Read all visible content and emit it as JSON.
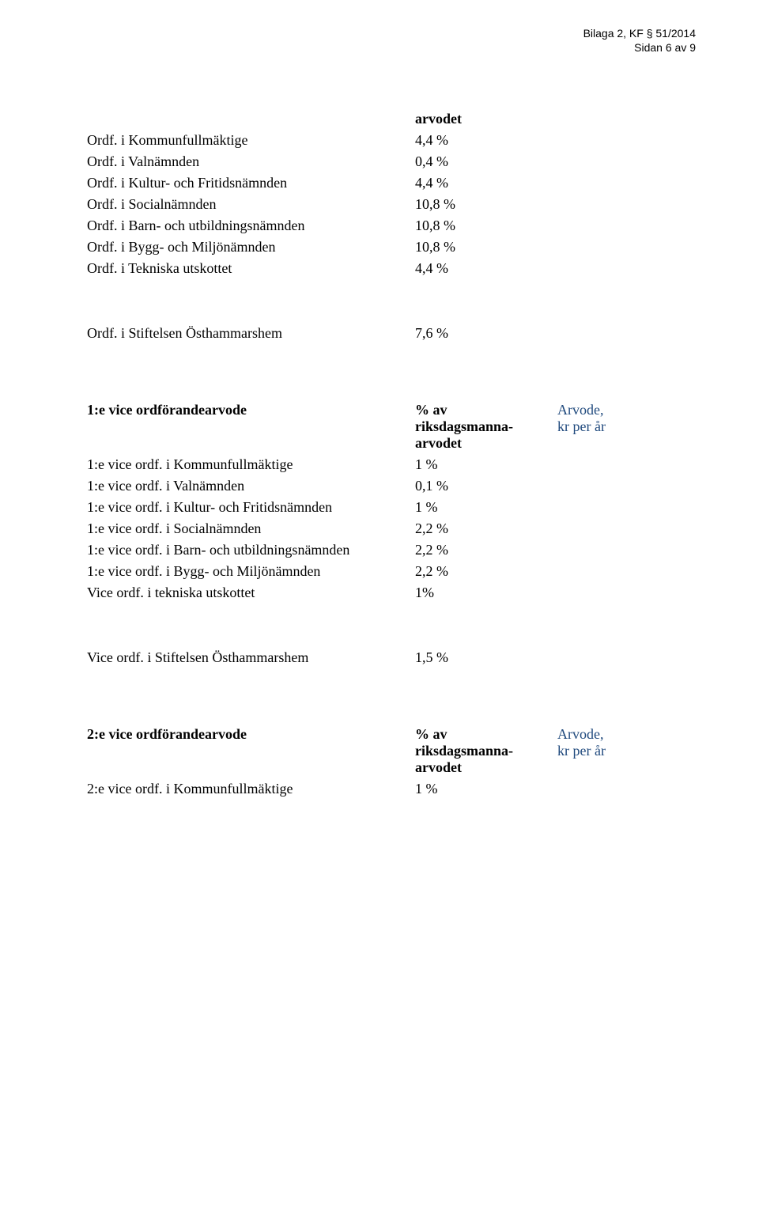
{
  "header": {
    "line1": "Bilaga 2, KF § 51/2014",
    "line2": "Sidan 6 av 9"
  },
  "section1": {
    "arvodet_label": "arvodet",
    "rows": [
      {
        "label": "Ordf. i Kommunfullmäktige",
        "value": "4,4 %"
      },
      {
        "label": "Ordf. i Valnämnden",
        "value": "0,4 %"
      },
      {
        "label": "Ordf. i Kultur- och Fritidsnämnden",
        "value": "4,4 %"
      },
      {
        "label": "Ordf. i Socialnämnden",
        "value": "10,8 %"
      },
      {
        "label": "Ordf. i Barn- och utbildningsnämnden",
        "value": "10,8 %"
      },
      {
        "label": "Ordf. i Bygg- och Miljönämnden",
        "value": "10,8 %"
      },
      {
        "label": " Ordf. i Tekniska utskottet",
        "value": "4,4 %"
      }
    ]
  },
  "section1b": {
    "rows": [
      {
        "label": "Ordf. i Stiftelsen Östhammarshem",
        "value": "7,6 %"
      }
    ]
  },
  "section2": {
    "header": {
      "c1": "1:e vice ordförandearvode",
      "c2a": "% av",
      "c2b": "riksdagsmanna-",
      "c2c": "arvodet",
      "c3a": "Arvode,",
      "c3b": "kr per år"
    },
    "rows": [
      {
        "label": "1:e vice ordf. i Kommunfullmäktige",
        "value": "1 %"
      },
      {
        "label": "1:e vice ordf. i Valnämnden",
        "value": "0,1 %"
      },
      {
        "label": "1:e vice ordf. i Kultur- och Fritidsnämnden",
        "value": "1 %"
      },
      {
        "label": "1:e vice ordf. i Socialnämnden",
        "value": "2,2 %"
      },
      {
        "label": "1:e vice ordf. i Barn- och utbildningsnämnden",
        "value": "2,2 %"
      },
      {
        "label": "1:e vice ordf. i Bygg- och Miljönämnden",
        "value": "2,2 %"
      },
      {
        "label": "Vice ordf. i tekniska utskottet",
        "value": "1%"
      }
    ]
  },
  "section2b": {
    "rows": [
      {
        "label": "Vice ordf. i Stiftelsen Östhammarshem",
        "value": "1,5 %"
      }
    ]
  },
  "section3": {
    "header": {
      "c1": "2:e vice ordförandearvode",
      "c2a": "% av",
      "c2b": "riksdagsmanna-",
      "c2c": "arvodet",
      "c3a": "Arvode,",
      "c3b": "kr per år"
    },
    "rows": [
      {
        "label": "2:e vice ordf. i Kommunfullmäktige",
        "value": "1 %"
      }
    ]
  }
}
